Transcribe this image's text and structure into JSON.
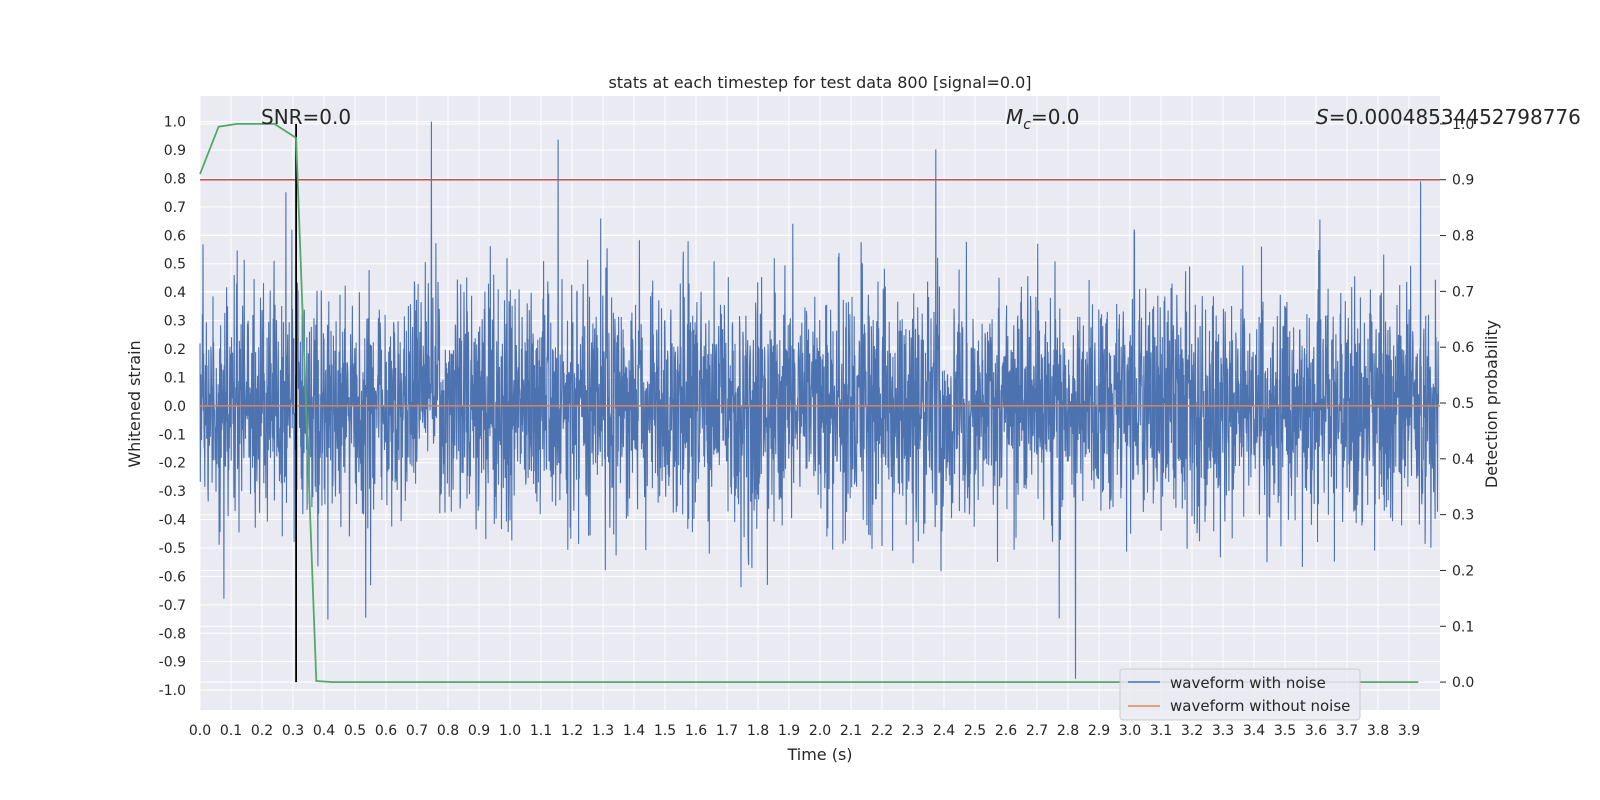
{
  "chart_data": {
    "type": "line",
    "title": "stats at each timestep for test data 800 [signal=0.0]",
    "xlabel": "Time (s)",
    "ylabel": "Whitened strain",
    "y2label": "Detection probability",
    "xlim": [
      0.0,
      4.0
    ],
    "ylim": [
      -1.07,
      1.09
    ],
    "y2lim": [
      -0.05,
      1.05
    ],
    "xticks": [
      "0.0",
      "0.1",
      "0.2",
      "0.3",
      "0.4",
      "0.5",
      "0.6",
      "0.7",
      "0.8",
      "0.9",
      "1.0",
      "1.1",
      "1.2",
      "1.3",
      "1.4",
      "1.5",
      "1.6",
      "1.7",
      "1.8",
      "1.9",
      "2.0",
      "2.1",
      "2.2",
      "2.3",
      "2.4",
      "2.5",
      "2.6",
      "2.7",
      "2.8",
      "2.9",
      "3.0",
      "3.1",
      "3.2",
      "3.3",
      "3.4",
      "3.5",
      "3.6",
      "3.7",
      "3.8",
      "3.9"
    ],
    "yticks": [
      "1.0",
      "0.9",
      "0.8",
      "0.7",
      "0.6",
      "0.5",
      "0.4",
      "0.3",
      "0.2",
      "0.1",
      "0.0",
      "-0.1",
      "-0.2",
      "-0.3",
      "-0.4",
      "-0.5",
      "-0.6",
      "-0.7",
      "-0.8",
      "-0.9",
      "-1.0"
    ],
    "y2ticks": [
      "1.0",
      "0.9",
      "0.8",
      "0.7",
      "0.6",
      "0.5",
      "0.4",
      "0.3",
      "0.2",
      "0.1",
      "0.0"
    ],
    "grid": true,
    "legend_position": "bottom-right",
    "annotations": {
      "snr": "SNR=0.0",
      "mc_symbol": "M",
      "mc_sub": "c",
      "mc_value": "=0.0",
      "s_symbol": "S",
      "s_value": "=0.00048534452798776"
    },
    "series": [
      {
        "name": "waveform with noise",
        "color": "#4c72b0",
        "style": "dense noise trace",
        "ymin": -0.96,
        "ymax": 1.0
      },
      {
        "name": "waveform without noise",
        "color": "#dd8452",
        "style": "flat line",
        "value": 0.0
      }
    ],
    "detection_probability": {
      "color": "#55a868",
      "x": [
        0.0,
        0.06,
        0.12,
        0.18,
        0.24,
        0.31,
        0.375,
        0.43,
        3.93
      ],
      "y": [
        0.91,
        0.995,
        1.0,
        1.0,
        1.0,
        0.975,
        0.002,
        0.0,
        0.0
      ]
    },
    "threshold": {
      "color": "#c44e52",
      "y2": 0.9
    },
    "marker_line": {
      "color": "#000000",
      "x": 0.31
    }
  }
}
